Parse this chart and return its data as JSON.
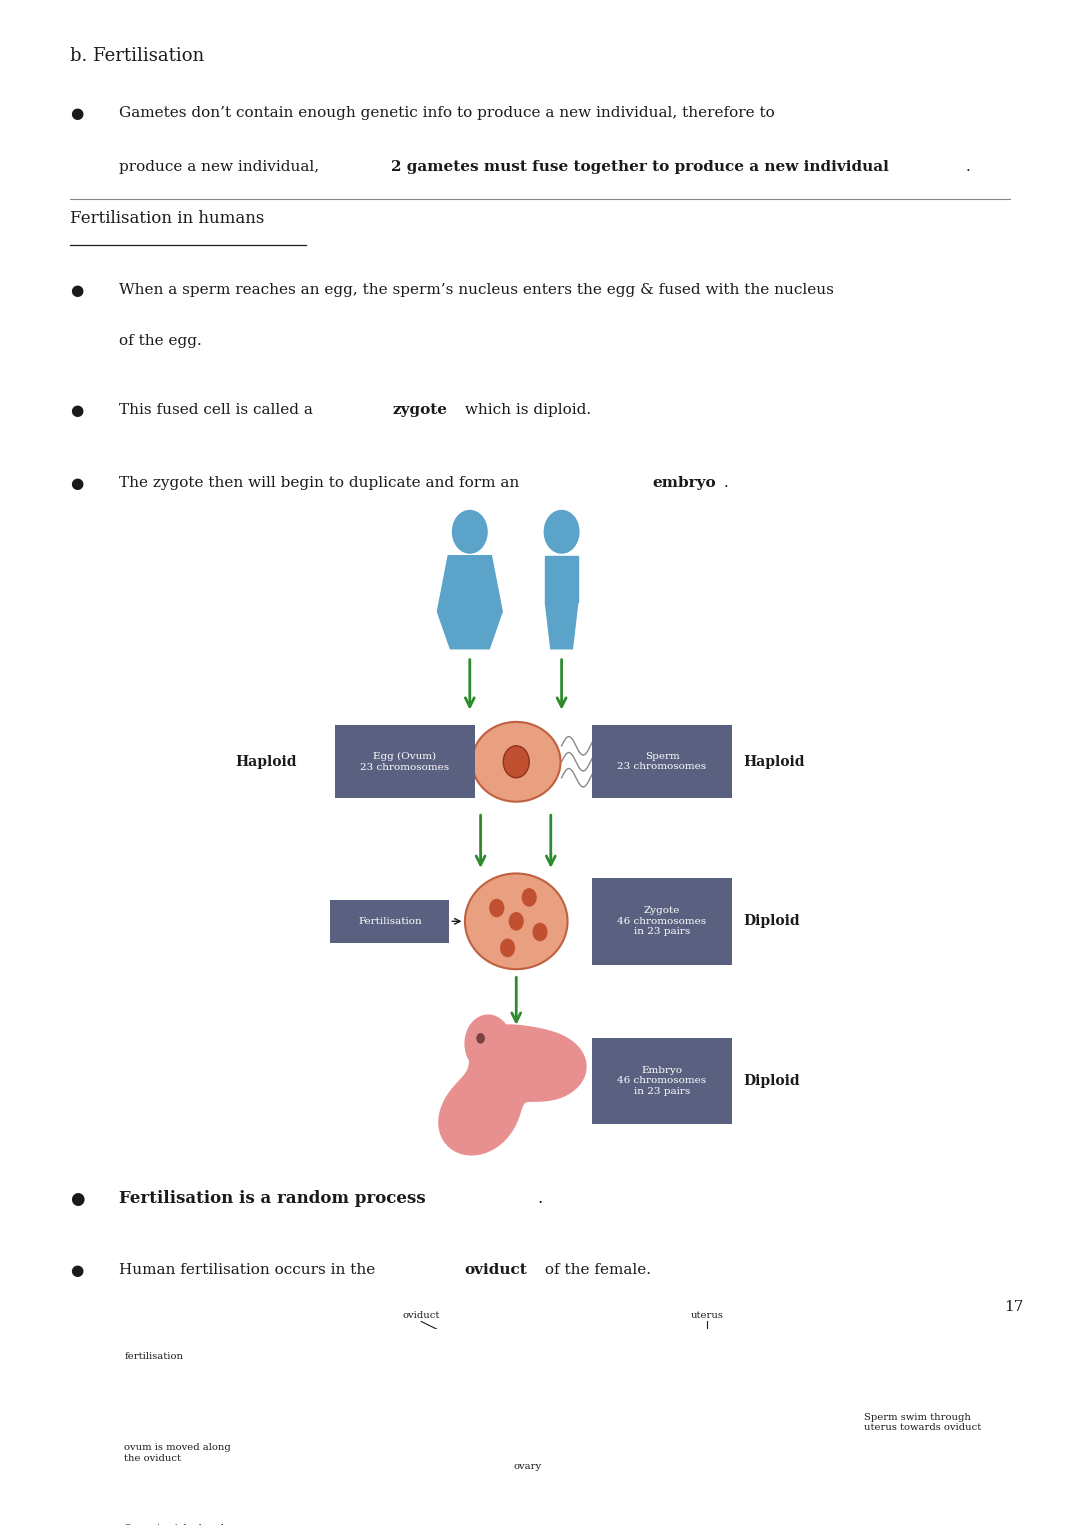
{
  "bg_color": "#ffffff",
  "page_number": "17",
  "heading": "b. Fertilisation",
  "section2_heading": "Fertilisation in humans",
  "bullet1_line1": "Gametes don’t contain enough genetic info to produce a new individual, therefore to",
  "bullet1_line2_normal": "produce a new individual, ",
  "bullet1_line2_bold": "2 gametes must fuse together to produce a new individual",
  "bullet2_line1": "When a sperm reaches an egg, the sperm’s nucleus enters the egg & fused with the nucleus",
  "bullet2_line2": "of the egg.",
  "bullet3_normal": "This fused cell is called a ",
  "bullet3_bold": "zygote",
  "bullet3_normal2": " which is diploid.",
  "bullet4_normal": "The zygote then will begin to duplicate and form an ",
  "bullet4_bold": "embryo",
  "bullet4_normal2": ".",
  "bullet5_bold": "Fertilisation is a random process",
  "bullet5_end": ".",
  "bullet6_normal": "Human fertilisation occurs in the ",
  "bullet6_bold": "oviduct",
  "bullet6_normal2": " of the female.",
  "font_family": "serif",
  "text_color": "#1a1a1a",
  "arrow_color": "#2d8a2d",
  "box_color": "#5a6080",
  "blue_figure": "#5ba3c9",
  "egg_color": "#e8a080",
  "egg_edge": "#c06040",
  "embryo_color": "#e89090"
}
